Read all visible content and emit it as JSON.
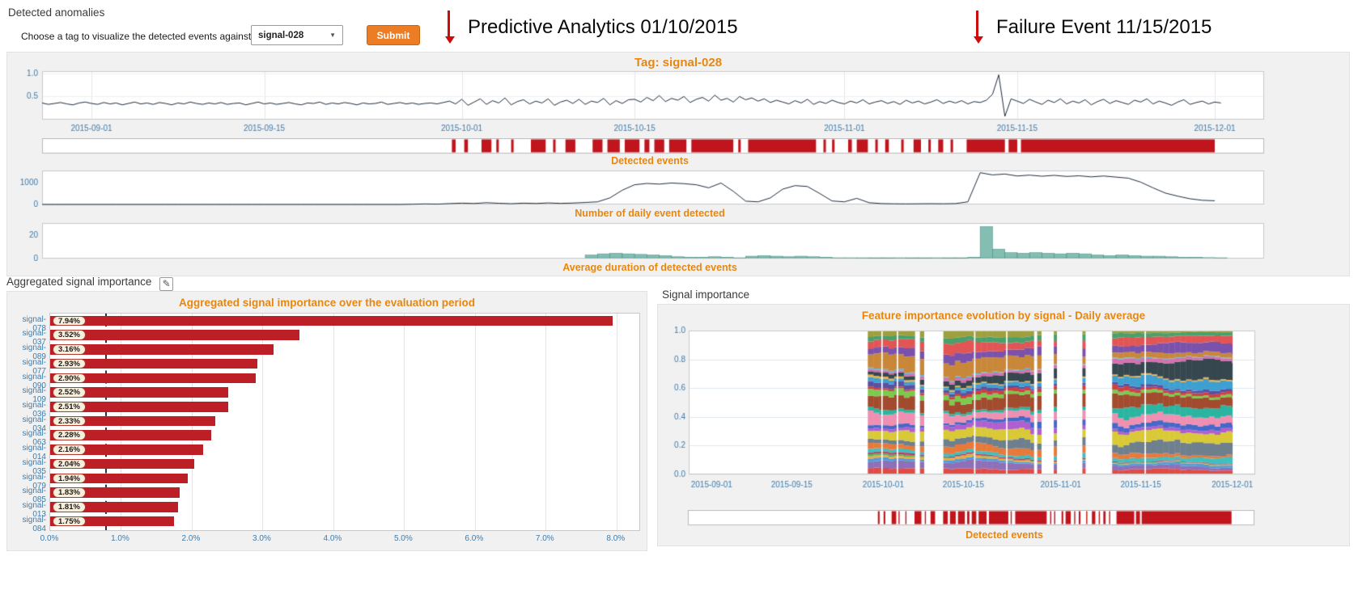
{
  "header": {
    "title": "Detected anomalies",
    "chooser_label": "Choose a tag to visualize the detected events against:",
    "selected_tag": "signal-028",
    "dropdown_caret": "▼",
    "submit_label": "Submit"
  },
  "annotations": [
    {
      "label": "Predictive Analytics 01/10/2015"
    },
    {
      "label": "Failure Event 11/15/2015"
    }
  ],
  "main_panel": {
    "title": "Tag: signal-028",
    "strip_label": "Detected events",
    "daily_label": "Number of daily event detected",
    "duration_label": "Average duration of detected events"
  },
  "left_panel": {
    "header": "Aggregated signal importance",
    "edit_icon": "✎",
    "title": "Aggregated signal importance over the evaluation period"
  },
  "right_panel": {
    "header": "Signal importance",
    "title": "Feature importance evolution by signal - Daily average",
    "strip_label": "Detected events"
  },
  "colors": {
    "accent_orange": "#e8870f",
    "axis_blue": "#3f7cac",
    "line_navy": "#1f2d3d",
    "event_red": "#c0151c",
    "bar_red": "#bc2026",
    "teal": "#6fb3a4",
    "teal_dark": "#4f9488",
    "panel_bg": "#f1f1f1",
    "plot_border": "#c9c9c9",
    "grid": "#e6e6e6",
    "mosaic_grid": "#dde8f0",
    "submit_orange": "#ec7d24",
    "arrow_red": "#cf0a0a",
    "threshold_navy": "#25364a"
  },
  "chart_data": [
    {
      "id": "tag-signal",
      "type": "line",
      "title": "Tag: signal-028",
      "x_domain_days": [
        0,
        99
      ],
      "day_zero_date": "2015-08-28",
      "x_ticks": [
        {
          "day": 4,
          "label": "2015-09-01"
        },
        {
          "day": 18,
          "label": "2015-09-15"
        },
        {
          "day": 34,
          "label": "2015-10-01"
        },
        {
          "day": 48,
          "label": "2015-10-15"
        },
        {
          "day": 65,
          "label": "2015-11-01"
        },
        {
          "day": 79,
          "label": "2015-11-15"
        },
        {
          "day": 95,
          "label": "2015-12-01"
        }
      ],
      "ylim": [
        0,
        1.05
      ],
      "y_ticks": [
        0.5,
        1.0
      ],
      "x_step_days": 0.5,
      "values": [
        0.36,
        0.33,
        0.35,
        0.37,
        0.34,
        0.32,
        0.36,
        0.38,
        0.35,
        0.33,
        0.37,
        0.34,
        0.36,
        0.32,
        0.35,
        0.38,
        0.34,
        0.36,
        0.33,
        0.37,
        0.35,
        0.32,
        0.36,
        0.34,
        0.38,
        0.35,
        0.33,
        0.36,
        0.34,
        0.37,
        0.33,
        0.35,
        0.36,
        0.32,
        0.35,
        0.38,
        0.34,
        0.36,
        0.33,
        0.35,
        0.37,
        0.34,
        0.32,
        0.36,
        0.35,
        0.38,
        0.33,
        0.36,
        0.34,
        0.37,
        0.35,
        0.32,
        0.36,
        0.34,
        0.35,
        0.38,
        0.33,
        0.35,
        0.37,
        0.34,
        0.36,
        0.33,
        0.35,
        0.36,
        0.34,
        0.37,
        0.4,
        0.34,
        0.44,
        0.31,
        0.38,
        0.45,
        0.33,
        0.41,
        0.36,
        0.47,
        0.32,
        0.39,
        0.43,
        0.34,
        0.4,
        0.36,
        0.45,
        0.31,
        0.38,
        0.42,
        0.35,
        0.44,
        0.33,
        0.4,
        0.37,
        0.46,
        0.32,
        0.41,
        0.35,
        0.43,
        0.44,
        0.38,
        0.48,
        0.41,
        0.52,
        0.39,
        0.46,
        0.42,
        0.5,
        0.37,
        0.44,
        0.48,
        0.4,
        0.53,
        0.42,
        0.46,
        0.38,
        0.5,
        0.43,
        0.47,
        0.4,
        0.45,
        0.37,
        0.42,
        0.38,
        0.34,
        0.41,
        0.36,
        0.44,
        0.33,
        0.39,
        0.35,
        0.42,
        0.37,
        0.34,
        0.4,
        0.36,
        0.43,
        0.34,
        0.38,
        0.41,
        0.35,
        0.39,
        0.33,
        0.42,
        0.36,
        0.4,
        0.34,
        0.38,
        0.43,
        0.35,
        0.4,
        0.36,
        0.41,
        0.34,
        0.39,
        0.37,
        0.42,
        0.55,
        0.97,
        0.07,
        0.45,
        0.4,
        0.35,
        0.44,
        0.38,
        0.33,
        0.42,
        0.37,
        0.45,
        0.34,
        0.4,
        0.36,
        0.43,
        0.32,
        0.39,
        0.44,
        0.35,
        0.41,
        0.37,
        0.33,
        0.42,
        0.38,
        0.45,
        0.34,
        0.4,
        0.36,
        0.31,
        0.38,
        0.43,
        0.33,
        0.37,
        0.4,
        0.34,
        0.38,
        0.36
      ]
    },
    {
      "id": "detected-events",
      "type": "event-strip",
      "label": "Detected events",
      "x_domain_days": [
        0,
        99
      ],
      "segments_days": [
        [
          33.2,
          33.5
        ],
        [
          34.2,
          34.5
        ],
        [
          35.6,
          36.4
        ],
        [
          36.8,
          37.0
        ],
        [
          38.0,
          38.2
        ],
        [
          39.6,
          40.8
        ],
        [
          41.4,
          41.6
        ],
        [
          42.4,
          43.2
        ],
        [
          44.6,
          45.4
        ],
        [
          45.8,
          46.8
        ],
        [
          47.2,
          48.4
        ],
        [
          48.8,
          49.2
        ],
        [
          49.6,
          50.4
        ],
        [
          50.8,
          52.2
        ],
        [
          52.6,
          56.0
        ],
        [
          56.4,
          56.6
        ],
        [
          57.2,
          62.7
        ],
        [
          63.3,
          63.5
        ],
        [
          64.0,
          64.2
        ],
        [
          65.3,
          65.6
        ],
        [
          66.0,
          66.9
        ],
        [
          67.5,
          67.7
        ],
        [
          68.3,
          68.6
        ],
        [
          69.6,
          69.8
        ],
        [
          70.6,
          71.2
        ],
        [
          71.8,
          72.0
        ],
        [
          72.6,
          73.0
        ],
        [
          73.6,
          73.8
        ],
        [
          74.9,
          78.0
        ],
        [
          78.3,
          79.0
        ],
        [
          79.3,
          95.0
        ]
      ]
    },
    {
      "id": "daily-events",
      "type": "line",
      "label": "Number of daily event detected",
      "x_domain_days": [
        0,
        99
      ],
      "ylim": [
        0,
        1550
      ],
      "y_ticks": [
        0,
        1000
      ],
      "x_step_days": 1,
      "values": [
        0,
        0,
        0,
        0,
        0,
        0,
        0,
        0,
        0,
        0,
        0,
        0,
        0,
        0,
        0,
        0,
        0,
        0,
        0,
        0,
        0,
        0,
        0,
        0,
        0,
        0,
        0,
        0,
        0,
        0,
        10,
        25,
        15,
        40,
        60,
        45,
        80,
        55,
        35,
        60,
        45,
        70,
        50,
        65,
        90,
        120,
        300,
        650,
        900,
        960,
        930,
        980,
        950,
        900,
        760,
        980,
        600,
        150,
        120,
        300,
        700,
        860,
        820,
        500,
        160,
        120,
        280,
        80,
        40,
        30,
        25,
        30,
        35,
        30,
        40,
        120,
        1450,
        1350,
        1390,
        1300,
        1340,
        1290,
        1330,
        1280,
        1310,
        1260,
        1300,
        1250,
        1200,
        1020,
        760,
        520,
        380,
        260,
        190,
        170
      ]
    },
    {
      "id": "event-duration",
      "type": "bar",
      "label": "Average duration of detected events",
      "x_domain_days": [
        0,
        99
      ],
      "ylim": [
        0,
        30
      ],
      "y_ticks": [
        0,
        20
      ],
      "x_step_days": 1,
      "values": [
        0,
        0,
        0,
        0,
        0,
        0,
        0,
        0,
        0,
        0,
        0,
        0,
        0,
        0,
        0,
        0,
        0,
        0,
        0,
        0,
        0,
        0,
        0,
        0,
        0,
        0,
        0,
        0,
        0,
        0,
        0,
        0,
        0,
        0,
        0,
        0,
        0,
        0,
        0,
        0,
        0,
        0,
        0,
        0,
        3,
        4,
        4.5,
        4,
        3.5,
        3,
        2.5,
        1.5,
        1,
        1,
        1.5,
        1,
        0.5,
        2,
        2.5,
        2,
        1.5,
        2,
        1.5,
        1,
        0.5,
        0.5,
        0.3,
        0.2,
        0.2,
        0.3,
        0.2,
        0.2,
        0.3,
        0.2,
        0.2,
        1,
        27,
        8,
        5,
        4.5,
        5,
        4.5,
        4,
        4.5,
        4,
        3,
        2.5,
        3,
        2.5,
        2,
        2,
        1.5,
        1,
        1,
        0.8,
        0.5
      ]
    },
    {
      "id": "aggregated-importance",
      "type": "bar-horizontal",
      "title": "Aggregated signal importance over the evaluation period",
      "categories": [
        "signal-078",
        "signal-037",
        "signal-089",
        "signal-077",
        "signal-090",
        "signal-109",
        "signal-036",
        "signal-034",
        "signal-063",
        "signal-014",
        "signal-035",
        "signal-079",
        "signal-085",
        "signal-013",
        "signal-084"
      ],
      "values": [
        7.94,
        3.52,
        3.16,
        2.93,
        2.9,
        2.52,
        2.51,
        2.33,
        2.28,
        2.16,
        2.04,
        1.94,
        1.83,
        1.81,
        1.75
      ],
      "value_labels": [
        "7.94%",
        "3.52%",
        "3.16%",
        "2.93%",
        "2.90%",
        "2.52%",
        "2.51%",
        "2.33%",
        "2.28%",
        "2.16%",
        "2.04%",
        "1.94%",
        "1.83%",
        "1.81%",
        "1.75%"
      ],
      "xlim": [
        0,
        8.3
      ],
      "x_tick_values": [
        0,
        1,
        2,
        3,
        4,
        5,
        6,
        7,
        8
      ],
      "x_tick_labels": [
        "0.0%",
        "1.0%",
        "2.0%",
        "3.0%",
        "4.0%",
        "5.0%",
        "6.0%",
        "7.0%",
        "8.0%"
      ],
      "threshold_value": 0.78
    },
    {
      "id": "importance-evolution",
      "type": "stacked-mosaic",
      "title": "Feature importance evolution by signal - Daily average",
      "x_domain_days": [
        0,
        99
      ],
      "x_ticks": [
        {
          "day": 4,
          "label": "2015-09-01"
        },
        {
          "day": 18,
          "label": "2015-09-15"
        },
        {
          "day": 34,
          "label": "2015-10-01"
        },
        {
          "day": 48,
          "label": "2015-10-15"
        },
        {
          "day": 65,
          "label": "2015-11-01"
        },
        {
          "day": 79,
          "label": "2015-11-15"
        },
        {
          "day": 95,
          "label": "2015-12-01"
        }
      ],
      "ylim": [
        0,
        1
      ],
      "y_tick_labels": [
        "0.0",
        "0.2",
        "0.4",
        "0.6",
        "0.8",
        "1.0"
      ],
      "segments_days": [
        [
          31.3,
          33.6
        ],
        [
          33.9,
          36.3
        ],
        [
          36.6,
          39.5
        ],
        [
          40.4,
          41.1
        ],
        [
          44.5,
          49.8
        ],
        [
          50.1,
          55.4
        ],
        [
          55.7,
          60.3
        ],
        [
          60.9,
          61.6
        ],
        [
          63.8,
          64.3
        ],
        [
          68.8,
          69.3
        ],
        [
          74.0,
          79.6
        ],
        [
          79.9,
          95.0
        ]
      ],
      "n_series": 28,
      "seed": 11,
      "palette": [
        "#e24b43",
        "#8e6fb8",
        "#4f9bd9",
        "#f2a93b",
        "#58b55f",
        "#c13a63",
        "#3fbfbf",
        "#e8793a",
        "#6e7f8d",
        "#d9c937",
        "#b05fd0",
        "#4668c8",
        "#ef8fb2",
        "#2bb5a0",
        "#a34b2e",
        "#7dc94e",
        "#cf4040",
        "#5b4fa0",
        "#3e9fd0",
        "#e8b04c",
        "#37474f",
        "#d66fae",
        "#57b8d8",
        "#c98739",
        "#7b52ab",
        "#e25555",
        "#49a06b",
        "#9f9f3c"
      ],
      "teal_boost": {
        "series_index": 13,
        "from_day": 74,
        "factor": 3
      },
      "dark_band": {
        "series_index": 20,
        "factor": 1.6
      }
    },
    {
      "id": "detected-events-right",
      "type": "event-strip",
      "label": "Detected events",
      "x_domain_days": [
        0,
        99
      ],
      "segments_ref": 1
    }
  ]
}
